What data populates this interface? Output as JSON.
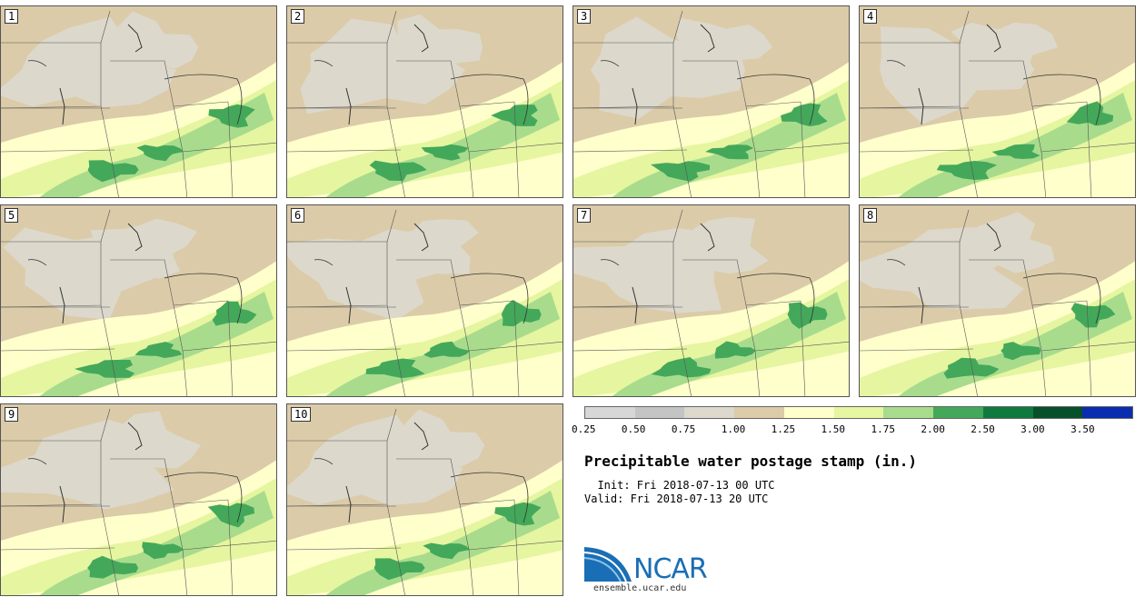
{
  "panels": [
    {
      "label": "1",
      "col": 0,
      "row": 0
    },
    {
      "label": "2",
      "col": 1,
      "row": 0
    },
    {
      "label": "3",
      "col": 2,
      "row": 0
    },
    {
      "label": "4",
      "col": 3,
      "row": 0
    },
    {
      "label": "5",
      "col": 0,
      "row": 1
    },
    {
      "label": "6",
      "col": 1,
      "row": 1
    },
    {
      "label": "7",
      "col": 2,
      "row": 1
    },
    {
      "label": "8",
      "col": 3,
      "row": 1
    },
    {
      "label": "9",
      "col": 0,
      "row": 2
    },
    {
      "label": "10",
      "col": 1,
      "row": 2
    }
  ],
  "colorbar": {
    "colors": [
      "#d7d7d7",
      "#c4c4c4",
      "#dcd8cc",
      "#dbcba8",
      "#ffffcc",
      "#e6f5a0",
      "#a8dc8c",
      "#44a85a",
      "#0f7a3e",
      "#06502a",
      "#0a2db0"
    ],
    "labels": [
      "0.25",
      "0.50",
      "0.75",
      "1.00",
      "1.25",
      "1.50",
      "1.75",
      "2.00",
      "2.50",
      "3.00",
      "3.50"
    ]
  },
  "title": "Precipitable water postage stamp (in.)",
  "init": "Init: Fri 2018-07-13 00 UTC",
  "valid": "Valid: Fri 2018-07-13 20 UTC",
  "logo": {
    "text": "NCAR",
    "site": "ensemble.ucar.edu",
    "color": "#1a6eb5"
  }
}
